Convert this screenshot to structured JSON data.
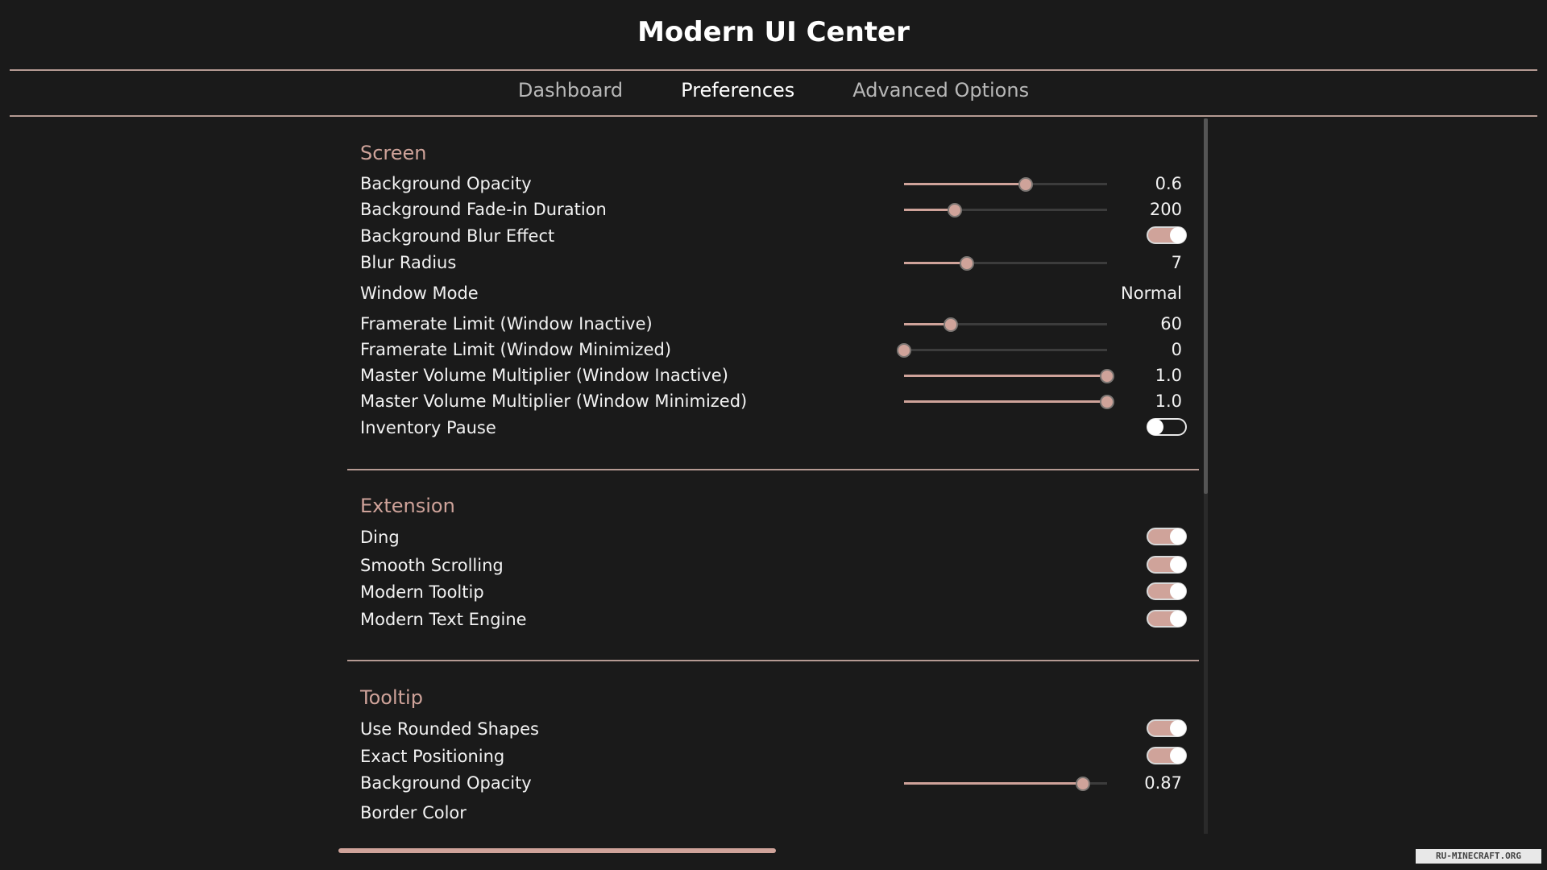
{
  "app": {
    "title": "Modern UI Center"
  },
  "tabs": [
    {
      "label": "Dashboard",
      "active": false
    },
    {
      "label": "Preferences",
      "active": true
    },
    {
      "label": "Advanced Options",
      "active": false
    }
  ],
  "colors": {
    "accent": "#cfa39a",
    "background": "#1a1a1a",
    "divider": "#b59a93"
  },
  "sections": [
    {
      "title": "Screen",
      "items": [
        {
          "label": "Background Opacity",
          "type": "slider",
          "value": "0.6",
          "fraction": 0.6
        },
        {
          "label": "Background Fade-in Duration",
          "type": "slider",
          "value": "200",
          "fraction": 0.25
        },
        {
          "label": "Background Blur Effect",
          "type": "toggle",
          "on": true
        },
        {
          "label": "Blur Radius",
          "type": "slider",
          "value": "7",
          "fraction": 0.31
        },
        {
          "label": "Window Mode",
          "type": "select",
          "value": "Normal"
        },
        {
          "label": "Framerate Limit (Window Inactive)",
          "type": "slider",
          "value": "60",
          "fraction": 0.23
        },
        {
          "label": "Framerate Limit (Window Minimized)",
          "type": "slider",
          "value": "0",
          "fraction": 0
        },
        {
          "label": "Master Volume Multiplier (Window Inactive)",
          "type": "slider",
          "value": "1.0",
          "fraction": 1
        },
        {
          "label": "Master Volume Multiplier (Window Minimized)",
          "type": "slider",
          "value": "1.0",
          "fraction": 1
        },
        {
          "label": "Inventory Pause",
          "type": "toggle",
          "on": false
        }
      ]
    },
    {
      "title": "Extension",
      "items": [
        {
          "label": "Ding",
          "type": "toggle",
          "on": true
        },
        {
          "label": "Smooth Scrolling",
          "type": "toggle",
          "on": true
        },
        {
          "label": "Modern Tooltip",
          "type": "toggle",
          "on": true
        },
        {
          "label": "Modern Text Engine",
          "type": "toggle",
          "on": true
        }
      ]
    },
    {
      "title": "Tooltip",
      "items": [
        {
          "label": "Use Rounded Shapes",
          "type": "toggle",
          "on": true
        },
        {
          "label": "Exact Positioning",
          "type": "toggle",
          "on": true
        },
        {
          "label": "Background Opacity",
          "type": "slider",
          "value": "0.87",
          "fraction": 0.88
        },
        {
          "label": "Border Color",
          "type": "color"
        }
      ]
    }
  ],
  "watermark": "RU-MINECRAFT.ORG"
}
